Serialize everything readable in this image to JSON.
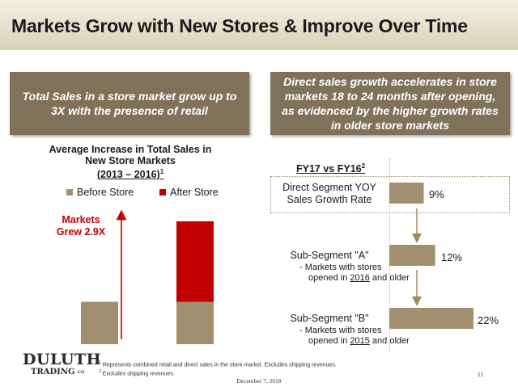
{
  "slide": {
    "title": "Markets Grow with New Stores & Improve Over Time",
    "page_number": "11",
    "date": "December 7, 2018"
  },
  "callouts": {
    "left": "Total Sales in a store market grow up to 3X with the presence of retail",
    "right": "Direct sales growth accelerates in store markets 18 to 24 months after opening, as evidenced by the higher growth rates in older store markets"
  },
  "left_chart": {
    "title_line1": "Average Increase in Total Sales in",
    "title_line2": "New Store Markets",
    "title_line3": "(2013 – 2016)",
    "title_sup": "1",
    "annotation_line1": "Markets",
    "annotation_line2": "Grew 2.9X"
  },
  "right_chart": {
    "title": "FY17 vs FY16",
    "title_sup": "2",
    "segments": [
      {
        "label_line1": "Direct Segment YOY",
        "label_line2": "Sales Growth Rate",
        "value_label": "9%"
      },
      {
        "label_line1": "Sub-Segment \"A\"",
        "sub_prefix": "-  Markets with stores",
        "sub_line2_pre": "opened in ",
        "sub_year": "2016",
        "sub_line2_post": " and older",
        "value_label": "12%"
      },
      {
        "label_line1": "Sub-Segment \"B\"",
        "sub_prefix": "-  Markets with stores",
        "sub_line2_pre": "opened in ",
        "sub_year": "2015",
        "sub_line2_post": " and older",
        "value_label": "22%"
      }
    ]
  },
  "footnotes": {
    "note1": "Represents combined retail and direct sales in the store market. Excludes shipping revenues.",
    "note1_marker": "1",
    "note2": "Excludes shipping revenues.",
    "note2_marker": "2"
  },
  "logo": {
    "line1": "DULUTH",
    "line2": "TRADING",
    "line2_suffix": "CO"
  },
  "colors": {
    "tan": "#a09070",
    "red": "#c00000",
    "callout_bg": "#7f7259",
    "arrow": "#a08a5a"
  },
  "chart_data": [
    {
      "type": "bar",
      "stacked": true,
      "categories": [
        "",
        ""
      ],
      "series": [
        {
          "name": "Before Store",
          "values": [
            1.0,
            1.0
          ]
        },
        {
          "name": "After Store",
          "values": [
            0,
            1.9
          ]
        }
      ],
      "ylim": [
        0,
        3.05
      ],
      "annotation": "Markets Grew 2.9X",
      "legend": "top"
    },
    {
      "type": "bar",
      "orientation": "horizontal",
      "categories": [
        "Direct Segment YOY Sales Growth Rate",
        "Sub-Segment \"A\"",
        "Sub-Segment \"B\""
      ],
      "values": [
        9,
        12,
        22
      ],
      "unit": "%",
      "xlim": [
        0,
        22
      ]
    }
  ]
}
